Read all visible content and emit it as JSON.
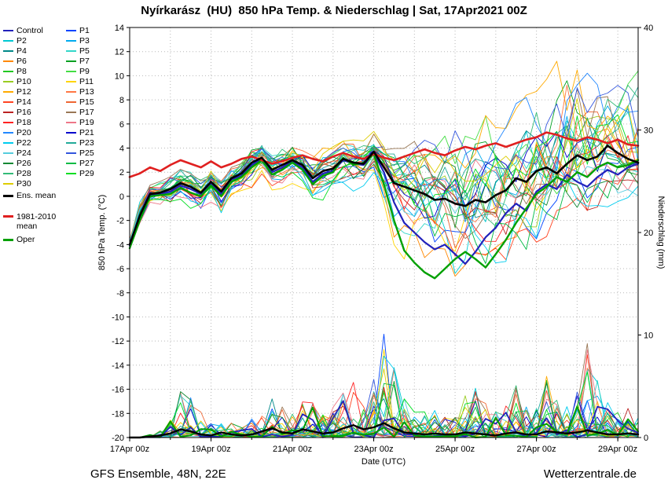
{
  "footer": {
    "left": "GFS Ensemble, 48N, 22E",
    "right": "Wetterzentrale.de"
  },
  "legend": {
    "members": [
      {
        "label": "Control",
        "color": "#2222bb"
      },
      {
        "label": "P1",
        "color": "#0044ff"
      },
      {
        "label": "P2",
        "color": "#00c8d2"
      },
      {
        "label": "P3",
        "color": "#00aaee"
      },
      {
        "label": "P4",
        "color": "#008888"
      },
      {
        "label": "P5",
        "color": "#33d6c9"
      },
      {
        "label": "P6",
        "color": "#ff8800"
      },
      {
        "label": "P7",
        "color": "#00a020"
      },
      {
        "label": "P8",
        "color": "#22c822"
      },
      {
        "label": "P9",
        "color": "#44dd44"
      },
      {
        "label": "P10",
        "color": "#99cc22"
      },
      {
        "label": "P11",
        "color": "#ffd400"
      },
      {
        "label": "P12",
        "color": "#ffaa00"
      },
      {
        "label": "P13",
        "color": "#ff7744"
      },
      {
        "label": "P14",
        "color": "#ff4422"
      },
      {
        "label": "P15",
        "color": "#ee6633"
      },
      {
        "label": "P16",
        "color": "#bb2222"
      },
      {
        "label": "P17",
        "color": "#997755"
      },
      {
        "label": "P18",
        "color": "#ff2222"
      },
      {
        "label": "P19",
        "color": "#ee7788"
      },
      {
        "label": "P20",
        "color": "#2288ff"
      },
      {
        "label": "P21",
        "color": "#0000cc"
      },
      {
        "label": "P22",
        "color": "#00ccee"
      },
      {
        "label": "P23",
        "color": "#22aa99"
      },
      {
        "label": "P24",
        "color": "#55ccdd"
      },
      {
        "label": "P25",
        "color": "#3355dd"
      },
      {
        "label": "P26",
        "color": "#118833"
      },
      {
        "label": "P27",
        "color": "#00bb44"
      },
      {
        "label": "P28",
        "color": "#33bb77"
      },
      {
        "label": "P29",
        "color": "#00dd22"
      },
      {
        "label": "P30",
        "color": "#ddcc00"
      }
    ],
    "ens_mean": {
      "label": "Ens. mean",
      "color": "#000000"
    },
    "climate": {
      "label_line1": "1981-2010",
      "label_line2": "mean",
      "color": "#e02020"
    },
    "oper": {
      "label": "Oper",
      "color": "#00a000"
    }
  },
  "chart_data": {
    "type": "line",
    "title": "Nyírkarász  (HU)  850 hPa Temp. & Niederschlag | Sat, 17Apr2021 00Z",
    "x_axis": {
      "label": "Date (UTC)",
      "start": "17Apr2021 00Z",
      "step_hours": 6,
      "span_days": 12.5,
      "tick_labels": [
        "17Apr 00z",
        "19Apr 00z",
        "21Apr 00z",
        "23Apr 00z",
        "25Apr 00z",
        "27Apr 00z",
        "29Apr 00z"
      ]
    },
    "y_left": {
      "label": "850 hPa Temp. (°C)",
      "range": [
        -20,
        14
      ],
      "ticks": [
        14,
        12,
        10,
        8,
        6,
        4,
        2,
        0,
        -2,
        -4,
        -6,
        -8,
        -10,
        -12,
        -14,
        -16,
        -18,
        -20
      ]
    },
    "y_right": {
      "label": "Niederschlag (mm)",
      "range": [
        0,
        40
      ],
      "ticks": [
        40,
        30,
        20,
        10,
        0
      ]
    },
    "grid": "dotted",
    "temp_series": {
      "ens_mean": [
        -4.0,
        -1.6,
        0.2,
        0.3,
        0.6,
        1.1,
        0.8,
        0.3,
        1.2,
        0.4,
        1.5,
        1.9,
        2.8,
        3.2,
        2.2,
        2.6,
        3.0,
        2.6,
        1.5,
        2.1,
        2.3,
        3.1,
        2.8,
        2.7,
        3.7,
        2.4,
        1.1,
        0.8,
        0.5,
        0.2,
        -0.3,
        -0.2,
        -0.6,
        -0.8,
        -0.3,
        -0.5,
        0.1,
        0.5,
        1.5,
        1.2,
        2.1,
        2.4,
        1.9,
        2.7,
        3.4,
        3.0,
        3.3,
        4.2,
        3.6,
        3.1,
        2.8
      ],
      "climate_1981_2010": [
        1.6,
        1.9,
        2.4,
        2.1,
        2.6,
        3.0,
        2.7,
        2.4,
        2.9,
        2.4,
        2.7,
        3.1,
        3.3,
        3.0,
        2.7,
        2.9,
        3.2,
        3.4,
        3.1,
        2.9,
        3.3,
        3.6,
        3.3,
        3.1,
        3.5,
        3.2,
        3.0,
        3.3,
        3.6,
        3.9,
        3.6,
        3.4,
        3.8,
        4.1,
        3.9,
        4.2,
        4.4,
        4.1,
        4.4,
        4.7,
        4.9,
        5.3,
        5.1,
        4.8,
        4.6,
        4.9,
        4.7,
        4.4,
        4.7,
        4.3,
        4.2
      ],
      "oper": [
        -4.3,
        -2.0,
        0.0,
        0.1,
        0.2,
        0.7,
        0.3,
        0.0,
        0.9,
        0.0,
        1.2,
        1.6,
        2.4,
        3.0,
        1.8,
        2.2,
        2.8,
        2.2,
        1.0,
        1.7,
        2.0,
        3.2,
        2.6,
        2.8,
        3.5,
        1.0,
        -2.0,
        -4.5,
        -5.5,
        -6.3,
        -6.8,
        -6.0,
        -5.2,
        -4.6,
        -5.2,
        -5.9,
        -4.8,
        -3.6,
        -2.2,
        -1.0,
        0.2,
        0.8,
        1.6,
        1.2,
        2.0,
        1.6,
        2.4,
        2.8,
        2.4,
        2.6,
        3.0
      ],
      "control": [
        -4.1,
        -1.8,
        0.1,
        0.2,
        0.4,
        0.9,
        0.6,
        0.2,
        1.0,
        0.2,
        1.4,
        1.7,
        2.6,
        3.1,
        2.0,
        2.4,
        2.9,
        2.4,
        1.2,
        1.9,
        2.1,
        3.0,
        2.7,
        2.6,
        3.6,
        2.0,
        -0.5,
        -2.2,
        -3.0,
        -3.8,
        -4.4,
        -4.0,
        -4.8,
        -5.6,
        -4.6,
        -3.4,
        -2.6,
        -1.4,
        -0.6,
        -1.2,
        0.4,
        1.0,
        0.6,
        1.8,
        1.2,
        0.8,
        1.6,
        2.2,
        1.8,
        2.4,
        2.7
      ],
      "ensemble_envelope_low": [
        -4.5,
        -2.6,
        -0.6,
        -0.6,
        -0.8,
        -0.4,
        -0.8,
        -1.2,
        -0.6,
        -1.8,
        -0.4,
        0.0,
        0.6,
        1.2,
        0.2,
        0.6,
        1.0,
        0.6,
        -0.6,
        -0.2,
        0.2,
        1.0,
        0.6,
        0.4,
        1.4,
        -1.2,
        -3.8,
        -5.0,
        -5.4,
        -6.0,
        -6.6,
        -6.4,
        -9.5,
        -6.8,
        -6.2,
        -6.4,
        -5.8,
        -5.2,
        -4.4,
        -4.2,
        -3.6,
        -3.2,
        -3.0,
        -2.6,
        -2.2,
        -2.0,
        -1.6,
        -1.0,
        -0.6,
        -0.2,
        0.0
      ],
      "ensemble_envelope_high": [
        -3.5,
        -0.5,
        1.0,
        1.2,
        1.8,
        2.4,
        2.2,
        1.6,
        2.6,
        1.8,
        2.8,
        3.2,
        4.2,
        4.6,
        3.8,
        4.0,
        4.4,
        4.2,
        3.4,
        3.8,
        4.2,
        4.8,
        4.6,
        4.4,
        5.2,
        4.6,
        4.2,
        4.0,
        4.4,
        4.6,
        4.2,
        4.8,
        6.5,
        7.0,
        6.5,
        7.5,
        7.0,
        6.5,
        7.8,
        8.2,
        8.5,
        9.5,
        11.0,
        13.2,
        12.5,
        11.5,
        10.5,
        9.8,
        9.5,
        10.0,
        10.2
      ]
    },
    "precip_series": {
      "ens_mean": [
        0,
        0,
        0.1,
        0.2,
        0.4,
        0.8,
        0.6,
        0.3,
        0.2,
        0.5,
        0.3,
        0.2,
        0.3,
        0.6,
        0.9,
        0.5,
        0.4,
        0.8,
        0.6,
        0.4,
        0.5,
        0.9,
        1.2,
        0.8,
        1.0,
        1.4,
        0.9,
        0.5,
        0.4,
        0.3,
        0.4,
        0.3,
        0.3,
        0.5,
        0.4,
        0.3,
        0.2,
        0.4,
        0.5,
        0.3,
        0.3,
        0.6,
        0.5,
        0.4,
        0.5,
        0.7,
        0.5,
        0.3,
        0.3,
        0.4,
        0.3
      ],
      "ensemble_envelope_high": [
        0,
        0,
        0.3,
        0.8,
        2.5,
        4.5,
        4.0,
        2.5,
        1.5,
        2.0,
        1.5,
        1.0,
        2.0,
        3.5,
        4.0,
        3.0,
        2.5,
        4.0,
        3.5,
        2.5,
        3.0,
        4.5,
        5.5,
        4.0,
        6.0,
        11.0,
        7.0,
        4.0,
        3.0,
        2.5,
        3.0,
        2.5,
        2.0,
        4.5,
        5.0,
        3.5,
        2.5,
        3.5,
        5.5,
        3.0,
        3.0,
        6.0,
        5.0,
        3.5,
        4.5,
        9.5,
        6.5,
        3.5,
        2.5,
        3.0,
        2.0
      ]
    }
  }
}
